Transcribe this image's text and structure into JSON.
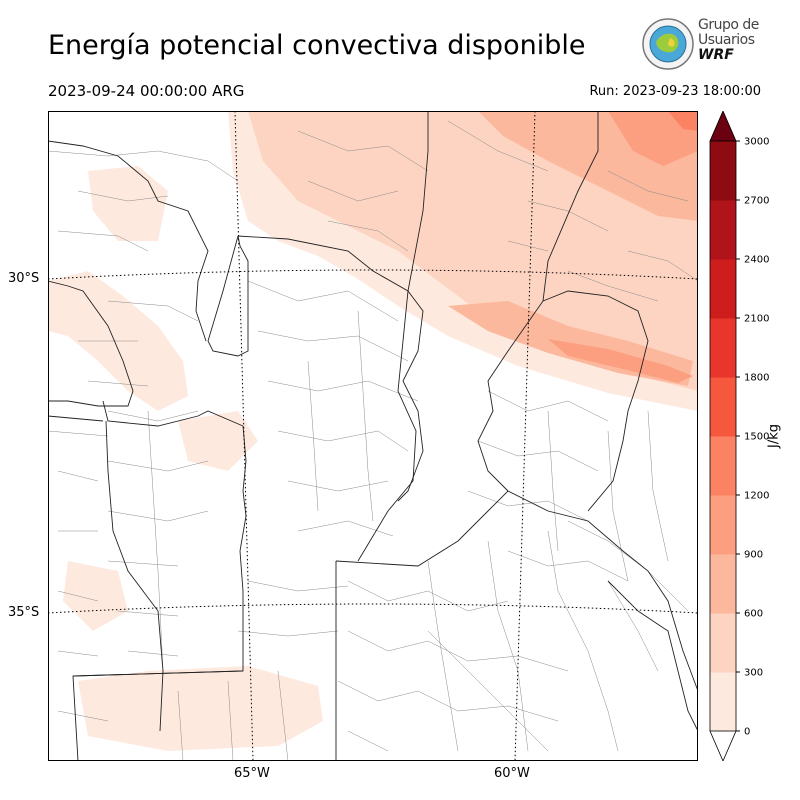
{
  "header": {
    "title": "Energía potencial convectiva disponible",
    "valid_time": "2023-09-24 00:00:00 ARG",
    "run_time": "Run: 2023-09-23 18:00:00"
  },
  "logo": {
    "line1": "Grupo de",
    "line2": "Usuarios",
    "line3": "WRF"
  },
  "map": {
    "lat_labels": [
      "30°S",
      "35°S"
    ],
    "lon_labels": [
      "65°W",
      "60°W"
    ],
    "field": "CAPE",
    "max_region": "north-east corner"
  },
  "colorbar": {
    "unit": "J/kg",
    "ticks": [
      "0",
      "300",
      "600",
      "900",
      "1200",
      "1500",
      "1800",
      "2100",
      "2400",
      "2700",
      "3000"
    ],
    "colors": [
      "#fee9df",
      "#fdd4c2",
      "#fcb89c",
      "#fc9f80",
      "#fb8363",
      "#f6583e",
      "#e8362c",
      "#cd1d1c",
      "#b0141a",
      "#8e0b13",
      "#6a0010"
    ],
    "extend": "both"
  }
}
